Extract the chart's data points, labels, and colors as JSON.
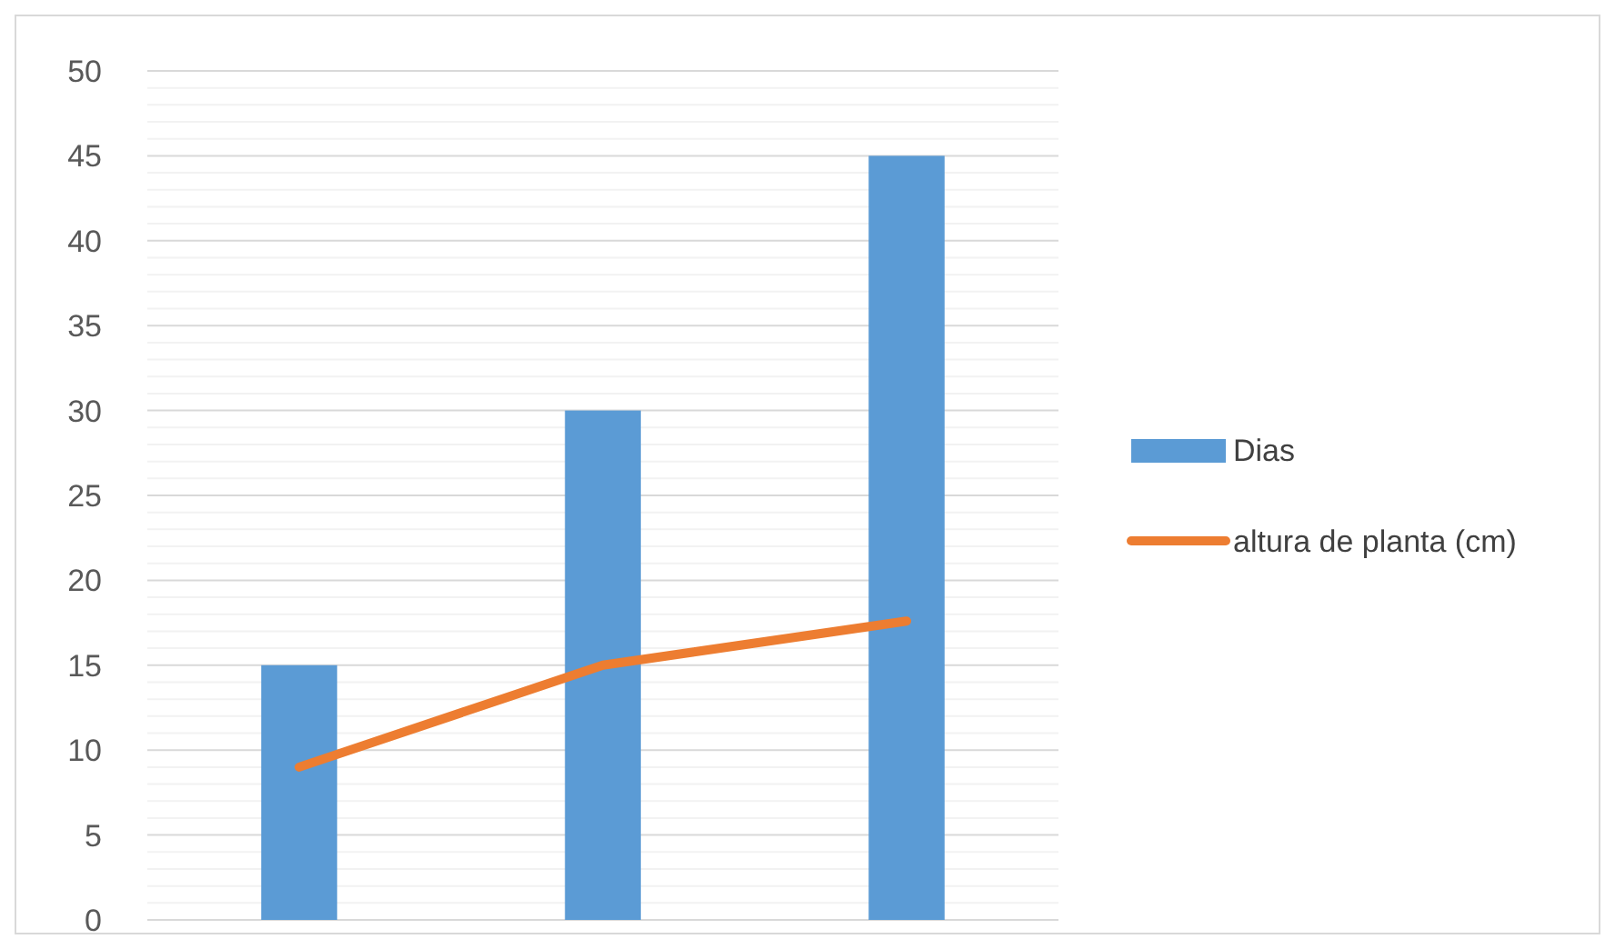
{
  "chart_data": {
    "type": "bar",
    "categories": [
      null,
      null,
      null
    ],
    "series": [
      {
        "name": "Dias",
        "color": "#5b9bd5",
        "values": [
          15,
          30,
          45
        ]
      },
      {
        "name": "altura de planta (cm)",
        "type": "line",
        "color": "#ed7d31",
        "values": [
          9,
          15,
          17.6
        ],
        "marker": "none"
      }
    ],
    "ylim": [
      0,
      50
    ],
    "yticks": [
      0,
      {
        "value": 1,
        "label": null
      },
      {
        "value": 2,
        "label": null
      },
      {
        "value": 3,
        "label": null
      },
      {
        "value": 4,
        "label": null
      },
      5,
      {
        "value": 6,
        "label": null
      },
      {
        "value": 7,
        "label": null
      },
      {
        "value": 8,
        "label": null
      },
      {
        "value": 9,
        "label": null
      },
      10,
      {
        "value": 11,
        "label": null
      },
      {
        "value": 12,
        "label": null
      },
      {
        "value": 13,
        "label": null
      },
      {
        "value": 14,
        "label": null
      },
      15,
      {
        "value": 16,
        "label": null
      },
      {
        "value": 17,
        "label": null
      },
      {
        "value": 18,
        "label": null
      },
      {
        "value": 19,
        "label": null
      },
      20,
      {
        "value": 21,
        "label": null
      },
      {
        "value": 22,
        "label": null
      },
      {
        "value": 23,
        "label": null
      },
      {
        "value": 24,
        "label": null
      },
      25,
      {
        "value": 26,
        "label": null
      },
      {
        "value": 27,
        "label": null
      },
      {
        "value": 28,
        "label": null
      },
      {
        "value": 29,
        "label": null
      },
      30,
      {
        "value": 31,
        "label": null
      },
      {
        "value": 32,
        "label": null
      },
      {
        "value": 33,
        "label": null
      },
      {
        "value": 34,
        "label": null
      },
      35,
      {
        "value": 36,
        "label": null
      },
      {
        "value": 37,
        "label": null
      },
      {
        "value": 38,
        "label": null
      },
      {
        "value": 39,
        "label": null
      },
      40,
      {
        "value": 41,
        "label": null
      },
      {
        "value": 42,
        "label": null
      },
      {
        "value": 43,
        "label": null
      },
      {
        "value": 44,
        "label": null
      },
      45,
      {
        "value": 46,
        "label": null
      },
      {
        "value": 47,
        "label": null
      },
      {
        "value": 48,
        "label": null
      },
      {
        "value": 49,
        "label": null
      },
      50
    ],
    "grid": "y",
    "legend": "right"
  }
}
